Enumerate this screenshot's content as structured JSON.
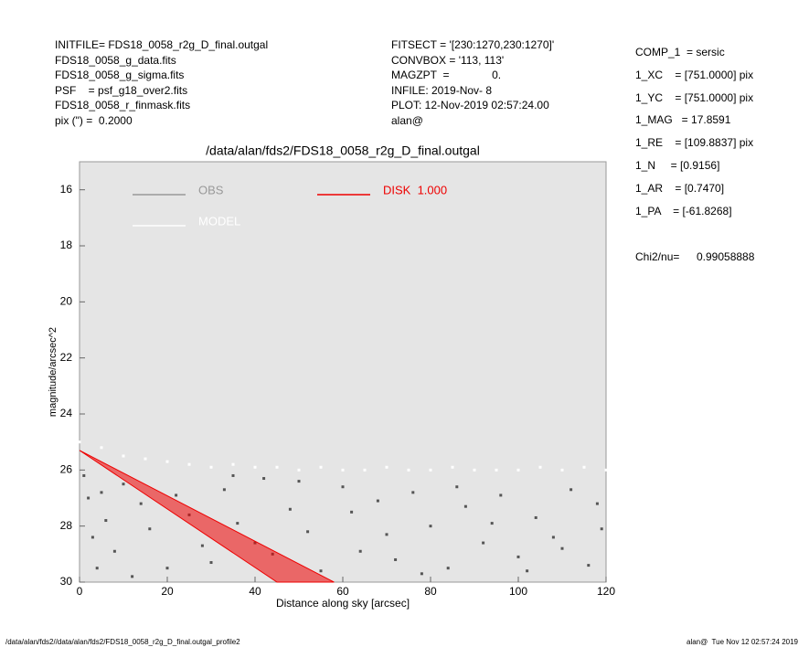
{
  "header": {
    "left": [
      "INITFILE= FDS18_0058_r2g_D_final.outgal",
      "FDS18_0058_g_data.fits",
      "FDS18_0058_g_sigma.fits",
      "PSF    = psf_g18_over2.fits",
      "FDS18_0058_r_finmask.fits",
      "pix (\") =  0.2000"
    ],
    "middle": [
      "FITSECT = '[230:1270,230:1270]'",
      "CONVBOX = '113, 113'",
      "MAGZPT  =              0.",
      "INFILE: 2019-Nov- 8",
      "PLOT: 12-Nov-2019 02:57:24.00",
      "alan@"
    ]
  },
  "params": [
    "COMP_1  = sersic",
    "1_XC    = [751.0000] pix",
    "1_YC    = [751.0000] pix",
    "1_MAG   = 17.8591",
    "1_RE    = [109.8837] pix",
    "1_N     = [0.9156]",
    "1_AR    = [0.7470]",
    "1_PA    = [-61.8268]"
  ],
  "chi2_label": "Chi2/nu=",
  "chi2_value": "0.99058888",
  "footer": {
    "left": "/data/alan/fds2//data/alan/fds2/FDS18_0058_r2g_D_final.outgal_profile2",
    "right": "alan@  Tue Nov 12 02:57:24 2019"
  },
  "chart_data": {
    "type": "scatter",
    "title": "/data/alan/fds2/FDS18_0058_r2g_D_final.outgal",
    "x_label": "Distance along sky [arcsec]",
    "y_label": "magnitude/arcsec^2",
    "xlim": [
      0,
      120
    ],
    "ylim": [
      30,
      15
    ],
    "xticks": [
      0,
      20,
      40,
      60,
      80,
      100,
      120
    ],
    "yticks": [
      16,
      18,
      20,
      22,
      24,
      26,
      28,
      30
    ],
    "series": [
      {
        "name": "OBS",
        "color": "#555555",
        "legend_color": "#999999",
        "x": [
          1,
          2,
          3,
          4,
          5,
          6,
          8,
          10,
          12,
          14,
          16,
          20,
          22,
          25,
          28,
          30,
          33,
          36,
          40,
          44,
          48,
          52,
          55,
          60,
          64,
          68,
          72,
          76,
          80,
          84,
          88,
          92,
          96,
          100,
          104,
          108,
          112,
          116,
          119,
          62,
          70,
          78,
          86,
          94,
          102,
          110,
          118,
          50,
          42,
          35
        ],
        "values": [
          26.2,
          27.0,
          28.4,
          29.5,
          26.8,
          27.8,
          28.9,
          26.5,
          29.8,
          27.2,
          28.1,
          29.5,
          26.9,
          27.6,
          28.7,
          29.3,
          26.7,
          27.9,
          28.6,
          29.0,
          27.4,
          28.2,
          29.6,
          26.6,
          28.9,
          27.1,
          29.2,
          26.8,
          28.0,
          29.5,
          27.3,
          28.6,
          26.9,
          29.1,
          27.7,
          28.4,
          26.7,
          29.4,
          28.1,
          27.5,
          28.3,
          29.7,
          26.6,
          27.9,
          29.6,
          28.8,
          27.2,
          26.4,
          26.3,
          26.2
        ]
      },
      {
        "name": "MODEL",
        "color": "#ffffff",
        "legend_color": "#ffffff",
        "x": [
          0,
          5,
          10,
          15,
          20,
          25,
          30,
          35,
          40,
          45,
          50,
          55,
          60,
          65,
          70,
          75,
          80,
          85,
          90,
          95,
          100,
          105,
          110,
          115,
          120
        ],
        "values": [
          25.0,
          25.2,
          25.5,
          25.6,
          25.7,
          25.8,
          25.9,
          25.8,
          25.9,
          25.9,
          26.0,
          25.9,
          26.0,
          26.0,
          25.9,
          26.0,
          26.0,
          25.9,
          26.0,
          26.0,
          26.0,
          25.9,
          26.0,
          25.9,
          26.0
        ]
      },
      {
        "name": "DISK  1.000",
        "color": "#ee0000",
        "legend_color": "#ee0000",
        "shape": "polygon",
        "x": [
          0,
          45,
          58
        ],
        "values": [
          25.3,
          30,
          30
        ]
      }
    ]
  }
}
